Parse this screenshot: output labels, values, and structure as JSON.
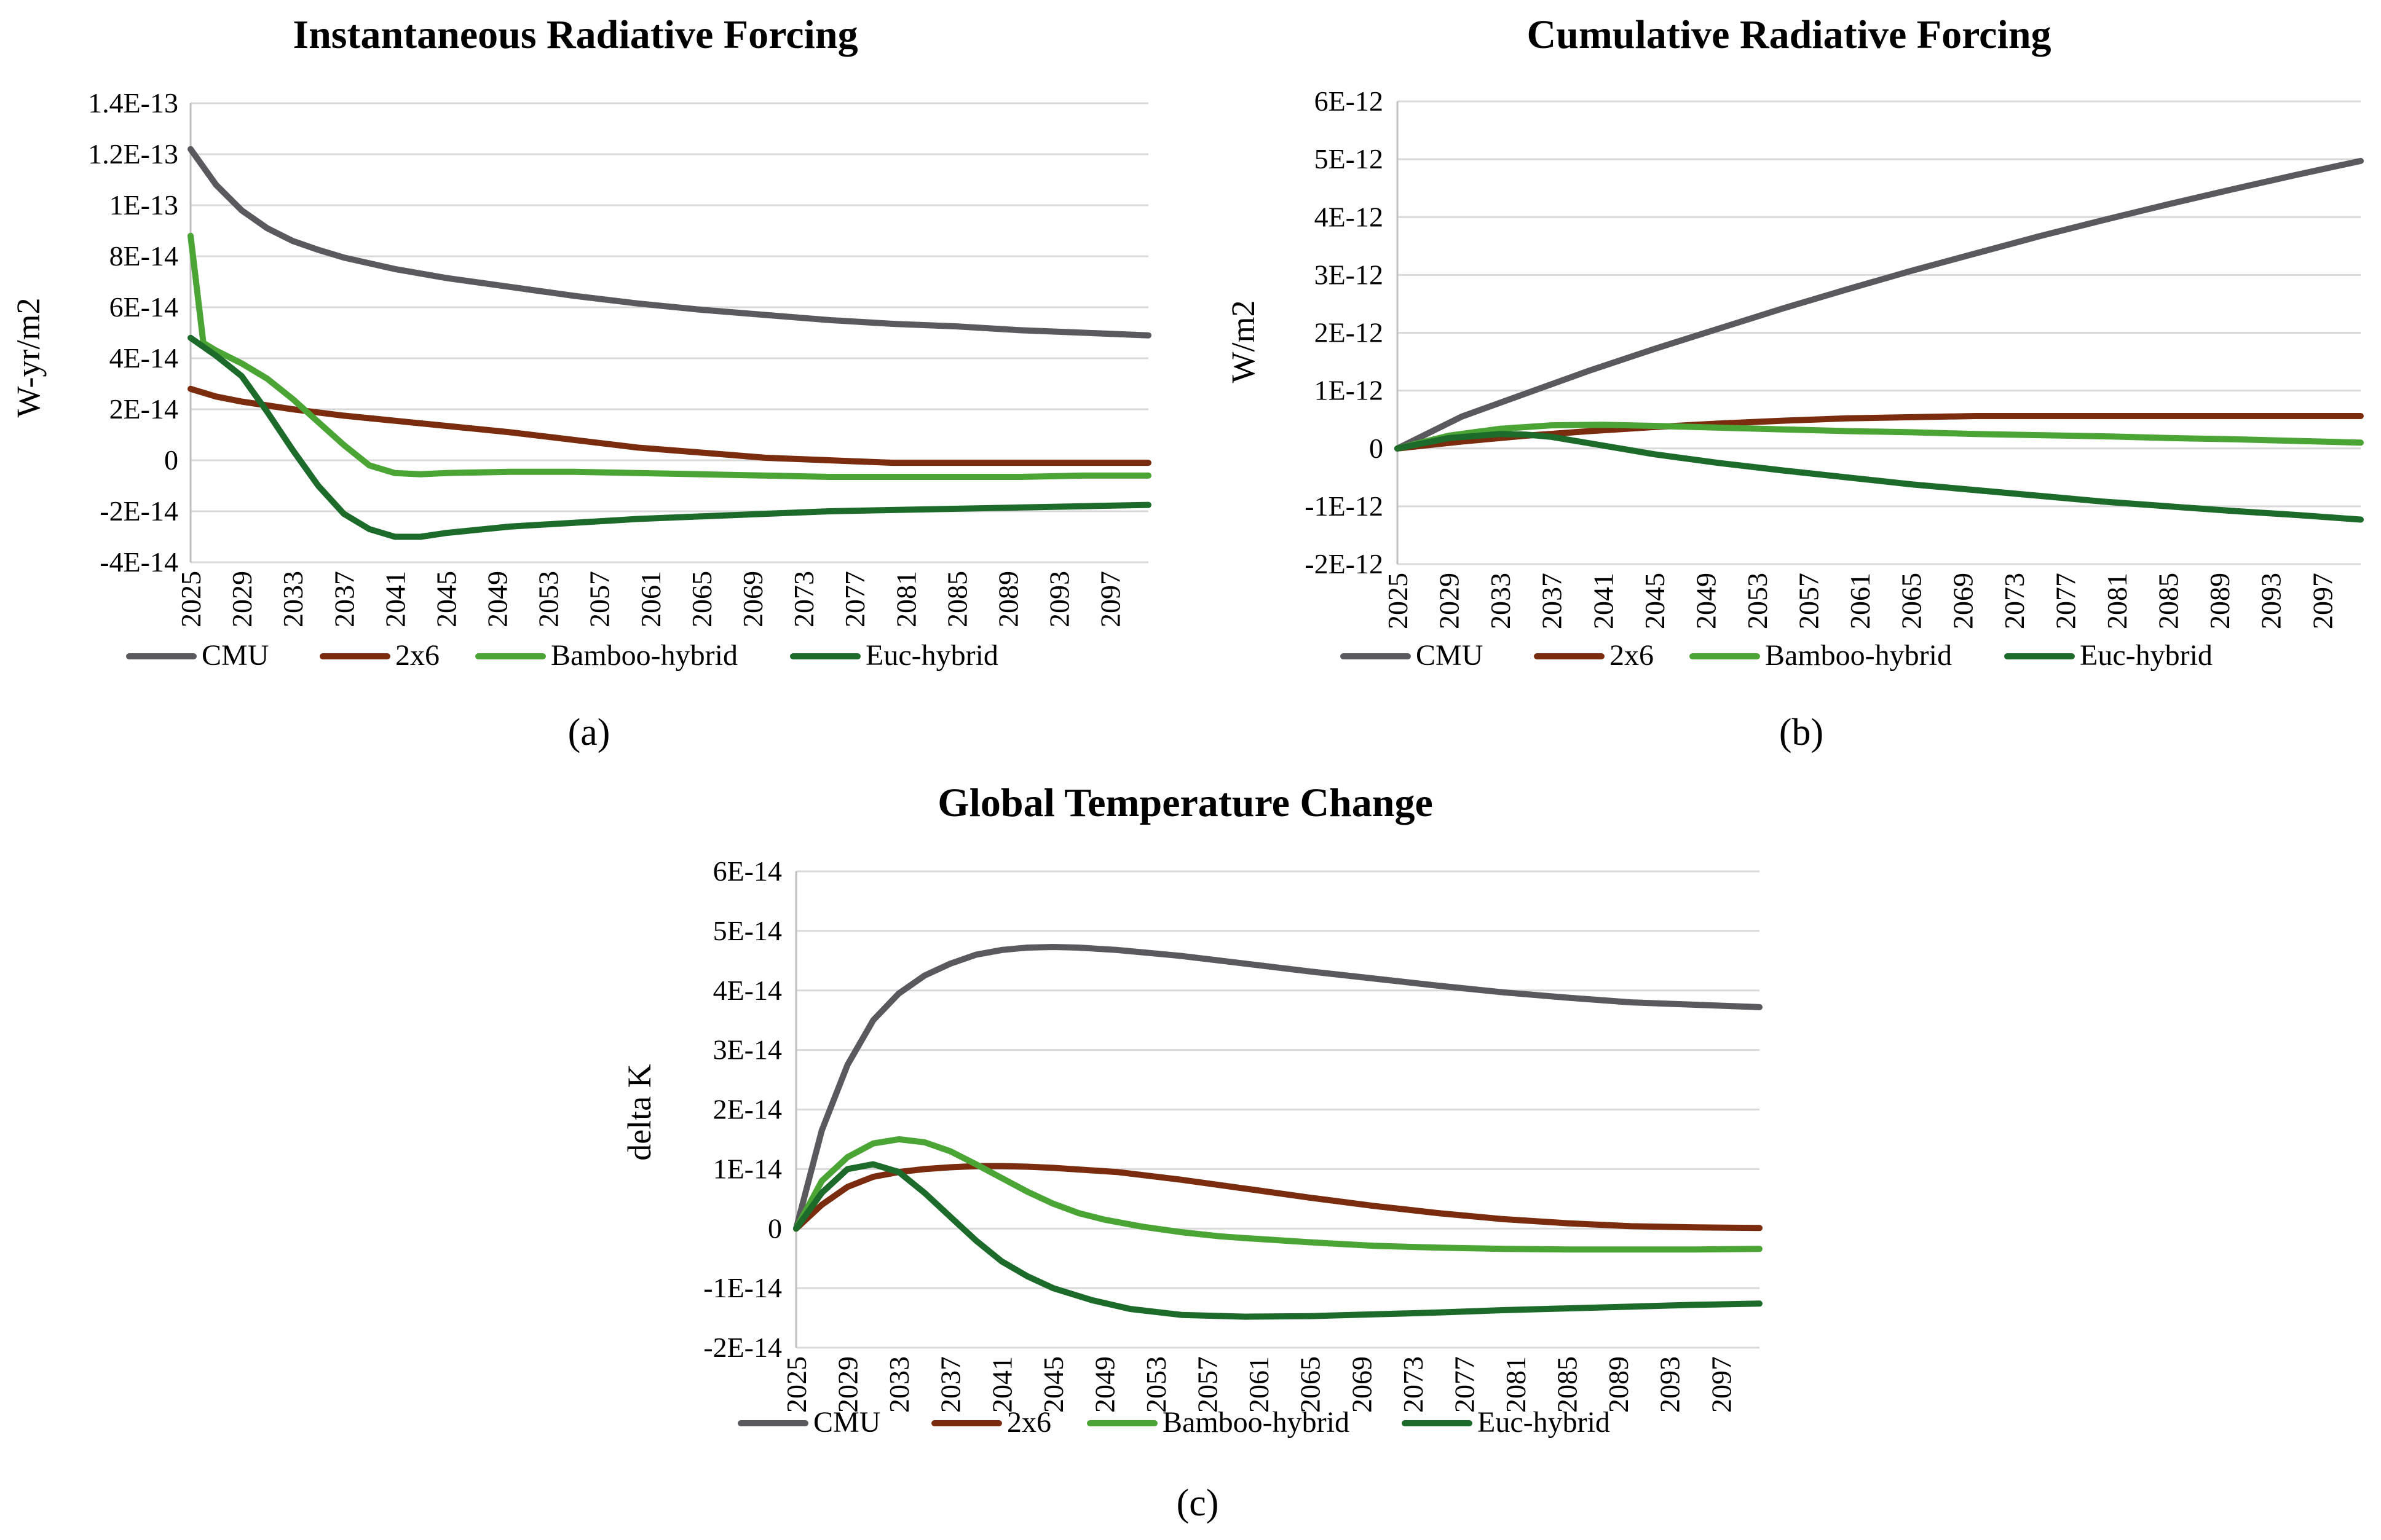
{
  "legend": [
    "CMU",
    "2x6",
    "Bamboo-hybrid",
    "Euc-hybrid"
  ],
  "colors": {
    "CMU": "#5a5a5e",
    "2x6": "#7b2c0e",
    "Bamboo-hybrid": "#4aa534",
    "Euc-hybrid": "#1d6b2a"
  },
  "chart_data": [
    {
      "type": "line",
      "panel_label": "(a)",
      "title": "Instantaneous Radiative Forcing",
      "xlabel": "",
      "ylabel": "W-yr/m2",
      "x_start": 2025,
      "x_end": 2100,
      "x_ticks": [
        "2025",
        "2029",
        "2033",
        "2037",
        "2041",
        "2045",
        "2049",
        "2053",
        "2057",
        "2061",
        "2065",
        "2069",
        "2073",
        "2077",
        "2081",
        "2085",
        "2089",
        "2093",
        "2097"
      ],
      "y_ticks": [
        "1.4E-13",
        "1.2E-13",
        "1E-13",
        "8E-14",
        "6E-14",
        "4E-14",
        "2E-14",
        "0",
        "-2E-14",
        "-4E-14"
      ],
      "ylim": [
        -4e-14,
        1.4e-13
      ],
      "series": [
        {
          "name": "CMU",
          "x": [
            2025,
            2027,
            2029,
            2031,
            2033,
            2035,
            2037,
            2041,
            2045,
            2050,
            2055,
            2060,
            2065,
            2070,
            2075,
            2080,
            2085,
            2090,
            2095,
            2100
          ],
          "values": [
            1.22e-13,
            1.08e-13,
            9.8e-14,
            9.1e-14,
            8.6e-14,
            8.25e-14,
            7.95e-14,
            7.5e-14,
            7.15e-14,
            6.8e-14,
            6.45e-14,
            6.15e-14,
            5.9e-14,
            5.7e-14,
            5.5e-14,
            5.35e-14,
            5.25e-14,
            5.1e-14,
            5e-14,
            4.9e-14
          ]
        },
        {
          "name": "2x6",
          "x": [
            2025,
            2027,
            2029,
            2033,
            2037,
            2041,
            2045,
            2050,
            2055,
            2060,
            2065,
            2070,
            2075,
            2080,
            2085,
            2090,
            2095,
            2100
          ],
          "values": [
            2.8e-14,
            2.5e-14,
            2.3e-14,
            2e-14,
            1.75e-14,
            1.55e-14,
            1.35e-14,
            1.1e-14,
            8e-15,
            5e-15,
            3e-15,
            1e-15,
            0,
            -1e-15,
            -1e-15,
            -1e-15,
            -1e-15,
            -1e-15
          ]
        },
        {
          "name": "Bamboo-hybrid",
          "x": [
            2025,
            2026,
            2027,
            2029,
            2031,
            2033,
            2035,
            2037,
            2039,
            2041,
            2043,
            2045,
            2050,
            2055,
            2060,
            2065,
            2070,
            2075,
            2080,
            2085,
            2090,
            2095,
            2100
          ],
          "values": [
            8.8e-14,
            4.6e-14,
            4.3e-14,
            3.8e-14,
            3.2e-14,
            2.4e-14,
            1.5e-14,
            6e-15,
            -2e-15,
            -5e-15,
            -5.5e-15,
            -5e-15,
            -4.5e-15,
            -4.5e-15,
            -5e-15,
            -5.5e-15,
            -6e-15,
            -6.5e-15,
            -6.5e-15,
            -6.5e-15,
            -6.5e-15,
            -6e-15,
            -6e-15
          ]
        },
        {
          "name": "Euc-hybrid",
          "x": [
            2025,
            2027,
            2029,
            2031,
            2033,
            2035,
            2037,
            2039,
            2041,
            2043,
            2045,
            2050,
            2055,
            2060,
            2065,
            2070,
            2075,
            2080,
            2085,
            2090,
            2095,
            2100
          ],
          "values": [
            4.8e-14,
            4.1e-14,
            3.3e-14,
            1.9e-14,
            4e-15,
            -1e-14,
            -2.1e-14,
            -2.7e-14,
            -3e-14,
            -3e-14,
            -2.85e-14,
            -2.6e-14,
            -2.45e-14,
            -2.3e-14,
            -2.2e-14,
            -2.1e-14,
            -2e-14,
            -1.95e-14,
            -1.9e-14,
            -1.85e-14,
            -1.8e-14,
            -1.75e-14
          ]
        }
      ]
    },
    {
      "type": "line",
      "panel_label": "(b)",
      "title": "Cumulative Radiative Forcing",
      "xlabel": "",
      "ylabel": "W/m2",
      "x_start": 2025,
      "x_end": 2100,
      "x_ticks": [
        "2025",
        "2029",
        "2033",
        "2037",
        "2041",
        "2045",
        "2049",
        "2053",
        "2057",
        "2061",
        "2065",
        "2069",
        "2073",
        "2077",
        "2081",
        "2085",
        "2089",
        "2093",
        "2097"
      ],
      "y_ticks": [
        "6E-12",
        "5E-12",
        "4E-12",
        "3E-12",
        "2E-12",
        "1E-12",
        "0",
        "-1E-12",
        "-2E-12"
      ],
      "ylim": [
        -2e-12,
        6e-12
      ],
      "series": [
        {
          "name": "CMU",
          "x": [
            2025,
            2030,
            2035,
            2040,
            2045,
            2050,
            2055,
            2060,
            2065,
            2070,
            2075,
            2080,
            2085,
            2090,
            2095,
            2100
          ],
          "values": [
            0,
            5.5e-13,
            9.5e-13,
            1.35e-12,
            1.72e-12,
            2.07e-12,
            2.42e-12,
            2.75e-12,
            3.07e-12,
            3.37e-12,
            3.67e-12,
            3.95e-12,
            4.22e-12,
            4.48e-12,
            4.73e-12,
            4.97e-12
          ]
        },
        {
          "name": "2x6",
          "x": [
            2025,
            2030,
            2035,
            2040,
            2045,
            2050,
            2055,
            2060,
            2065,
            2070,
            2075,
            2080,
            2085,
            2090,
            2095,
            2100
          ],
          "values": [
            0,
            1.2e-13,
            2.2e-13,
            3e-13,
            3.7e-13,
            4.3e-13,
            4.8e-13,
            5.2e-13,
            5.4e-13,
            5.6e-13,
            5.6e-13,
            5.6e-13,
            5.6e-13,
            5.6e-13,
            5.6e-13,
            5.6e-13
          ]
        },
        {
          "name": "Bamboo-hybrid",
          "x": [
            2025,
            2029,
            2033,
            2037,
            2041,
            2045,
            2050,
            2055,
            2060,
            2065,
            2070,
            2075,
            2080,
            2085,
            2090,
            2095,
            2100
          ],
          "values": [
            0,
            2.2e-13,
            3.4e-13,
            4e-13,
            4.1e-13,
            3.9e-13,
            3.6e-13,
            3.3e-13,
            3e-13,
            2.8e-13,
            2.5e-13,
            2.3e-13,
            2.1e-13,
            1.8e-13,
            1.6e-13,
            1.3e-13,
            1e-13
          ]
        },
        {
          "name": "Euc-hybrid",
          "x": [
            2025,
            2029,
            2033,
            2035,
            2037,
            2041,
            2045,
            2050,
            2055,
            2060,
            2065,
            2070,
            2075,
            2080,
            2085,
            2090,
            2095,
            2100
          ],
          "values": [
            0,
            1.8e-13,
            2.5e-13,
            2.4e-13,
            2e-13,
            5e-14,
            -1e-13,
            -2.5e-13,
            -3.8e-13,
            -5e-13,
            -6.2e-13,
            -7.2e-13,
            -8.2e-13,
            -9.2e-13,
            -1e-12,
            -1.08e-12,
            -1.15e-12,
            -1.23e-12
          ]
        }
      ]
    },
    {
      "type": "line",
      "panel_label": "(c)",
      "title": "Global Temperature Change",
      "xlabel": "",
      "ylabel": "delta K",
      "x_start": 2025,
      "x_end": 2100,
      "x_ticks": [
        "2025",
        "2029",
        "2033",
        "2037",
        "2041",
        "2045",
        "2049",
        "2053",
        "2057",
        "2061",
        "2065",
        "2069",
        "2073",
        "2077",
        "2081",
        "2085",
        "2089",
        "2093",
        "2097"
      ],
      "y_ticks": [
        "6E-14",
        "5E-14",
        "4E-14",
        "3E-14",
        "2E-14",
        "1E-14",
        "0",
        "-1E-14",
        "-2E-14"
      ],
      "ylim": [
        -2e-14,
        6e-14
      ],
      "series": [
        {
          "name": "CMU",
          "x": [
            2025,
            2027,
            2029,
            2031,
            2033,
            2035,
            2037,
            2039,
            2041,
            2043,
            2045,
            2047,
            2050,
            2055,
            2060,
            2065,
            2070,
            2075,
            2080,
            2085,
            2090,
            2095,
            2100
          ],
          "values": [
            0,
            1.65e-14,
            2.75e-14,
            3.5e-14,
            3.95e-14,
            4.25e-14,
            4.45e-14,
            4.6e-14,
            4.68e-14,
            4.72e-14,
            4.73e-14,
            4.72e-14,
            4.68e-14,
            4.58e-14,
            4.45e-14,
            4.32e-14,
            4.2e-14,
            4.08e-14,
            3.97e-14,
            3.88e-14,
            3.8e-14,
            3.76e-14,
            3.72e-14
          ]
        },
        {
          "name": "2x6",
          "x": [
            2025,
            2027,
            2029,
            2031,
            2033,
            2035,
            2037,
            2039,
            2041,
            2043,
            2045,
            2050,
            2055,
            2060,
            2065,
            2070,
            2075,
            2080,
            2085,
            2090,
            2095,
            2100
          ],
          "values": [
            0,
            4e-15,
            7e-15,
            8.7e-15,
            9.5e-15,
            1e-14,
            1.03e-14,
            1.05e-14,
            1.05e-14,
            1.04e-14,
            1.02e-14,
            9.5e-15,
            8.2e-15,
            6.7e-15,
            5.2e-15,
            3.8e-15,
            2.6e-15,
            1.6e-15,
            9e-16,
            4e-16,
            2e-16,
            1e-16
          ]
        },
        {
          "name": "Bamboo-hybrid",
          "x": [
            2025,
            2027,
            2029,
            2031,
            2033,
            2035,
            2037,
            2039,
            2041,
            2043,
            2045,
            2047,
            2049,
            2052,
            2055,
            2058,
            2060,
            2065,
            2070,
            2075,
            2080,
            2085,
            2090,
            2095,
            2100
          ],
          "values": [
            0,
            8e-15,
            1.2e-14,
            1.43e-14,
            1.5e-14,
            1.45e-14,
            1.3e-14,
            1.08e-14,
            8.5e-15,
            6.2e-15,
            4.2e-15,
            2.6e-15,
            1.5e-15,
            3e-16,
            -6e-16,
            -1.3e-15,
            -1.6e-15,
            -2.3e-15,
            -2.9e-15,
            -3.2e-15,
            -3.4e-15,
            -3.5e-15,
            -3.5e-15,
            -3.5e-15,
            -3.4e-15
          ]
        },
        {
          "name": "Euc-hybrid",
          "x": [
            2025,
            2027,
            2029,
            2031,
            2033,
            2035,
            2037,
            2039,
            2041,
            2043,
            2045,
            2048,
            2051,
            2055,
            2060,
            2065,
            2070,
            2075,
            2080,
            2085,
            2090,
            2095,
            2100
          ],
          "values": [
            0,
            6e-15,
            1e-14,
            1.08e-14,
            9.5e-15,
            6e-15,
            2e-15,
            -2e-15,
            -5.5e-15,
            -8e-15,
            -1e-14,
            -1.2e-14,
            -1.35e-14,
            -1.45e-14,
            -1.48e-14,
            -1.47e-14,
            -1.44e-14,
            -1.41e-14,
            -1.37e-14,
            -1.34e-14,
            -1.31e-14,
            -1.28e-14,
            -1.26e-14
          ]
        }
      ]
    }
  ]
}
